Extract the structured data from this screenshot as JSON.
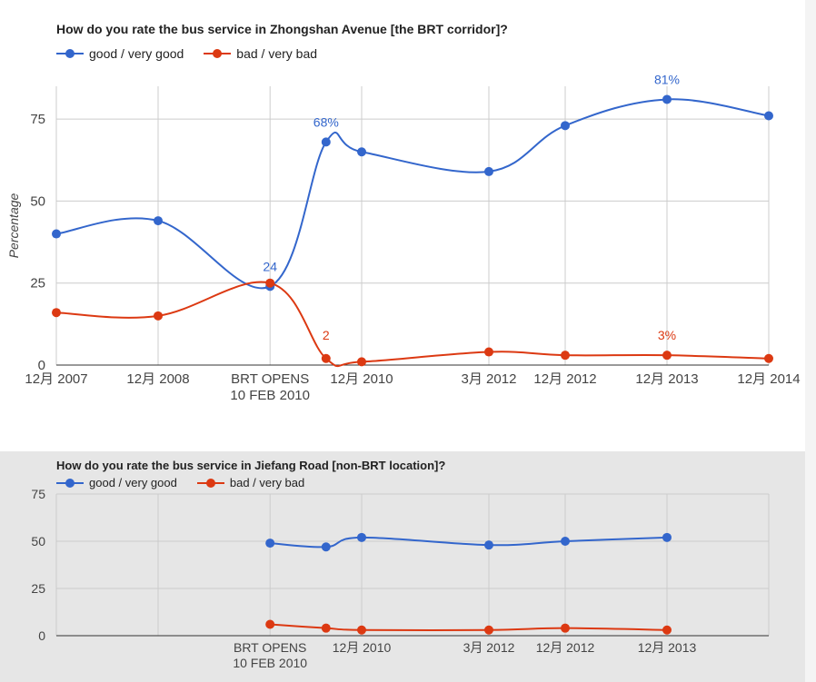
{
  "colors": {
    "good": "#3366cc",
    "bad": "#dc3912",
    "grid": "#cccccc",
    "axis": "#333333",
    "tick_text": "#444444"
  },
  "chart_data": [
    {
      "type": "line",
      "title": "How do you rate the bus service in Zhongshan Avenue [the BRT corridor]?",
      "ylabel": "Percentage",
      "xlabel": "",
      "ylim": [
        0,
        75
      ],
      "yticks": [
        0,
        25,
        50,
        75
      ],
      "grid": true,
      "legend_position": "top-left",
      "categories": [
        "12月 2007",
        "12月 2008",
        "BRT OPENS 10 FEB 2010",
        "12月 2010",
        "3月 2012",
        "12月 2012",
        "12月 2013",
        "12月 2014"
      ],
      "x": [
        0,
        1,
        2.1,
        3,
        4.25,
        5,
        6,
        7
      ],
      "series": [
        {
          "name": "good / very good",
          "color": "#3366cc",
          "values": [
            40,
            44,
            24,
            68,
            65,
            59,
            73,
            81,
            76
          ],
          "x": [
            0,
            1,
            2.1,
            2.65,
            3,
            4.25,
            5,
            6,
            7
          ],
          "annotations": [
            {
              "index": 2,
              "text": "24"
            },
            {
              "index": 3,
              "text": "68%"
            },
            {
              "index": 7,
              "text": "81%"
            }
          ]
        },
        {
          "name": "bad / very bad",
          "color": "#dc3912",
          "values": [
            16,
            15,
            25,
            2,
            1,
            4,
            3,
            3,
            2
          ],
          "x": [
            0,
            1,
            2.1,
            2.65,
            3,
            4.25,
            5,
            6,
            7
          ],
          "annotations": [
            {
              "index": 3,
              "text": "2"
            },
            {
              "index": 7,
              "text": "3%"
            }
          ]
        }
      ]
    },
    {
      "type": "line",
      "title": "How do you rate the bus service in Jiefang Road [non-BRT location]?",
      "ylabel": "",
      "xlabel": "",
      "ylim": [
        0,
        75
      ],
      "yticks": [
        0,
        25,
        50,
        75
      ],
      "grid": true,
      "legend_position": "top-left",
      "categories": [
        "BRT OPENS 10 FEB 2010",
        "12月 2010",
        "3月 2012",
        "12月 2012",
        "12月 2013"
      ],
      "x": [
        2.1,
        3,
        4.25,
        5,
        6
      ],
      "series": [
        {
          "name": "good / very good",
          "color": "#3366cc",
          "values": [
            49,
            47,
            52,
            48,
            50,
            52
          ],
          "x": [
            2.1,
            2.65,
            3,
            4.25,
            5,
            6
          ]
        },
        {
          "name": "bad / very bad",
          "color": "#dc3912",
          "values": [
            6,
            4,
            3,
            3,
            4,
            3
          ],
          "x": [
            2.1,
            2.65,
            3,
            4.25,
            5,
            6
          ]
        }
      ]
    }
  ]
}
